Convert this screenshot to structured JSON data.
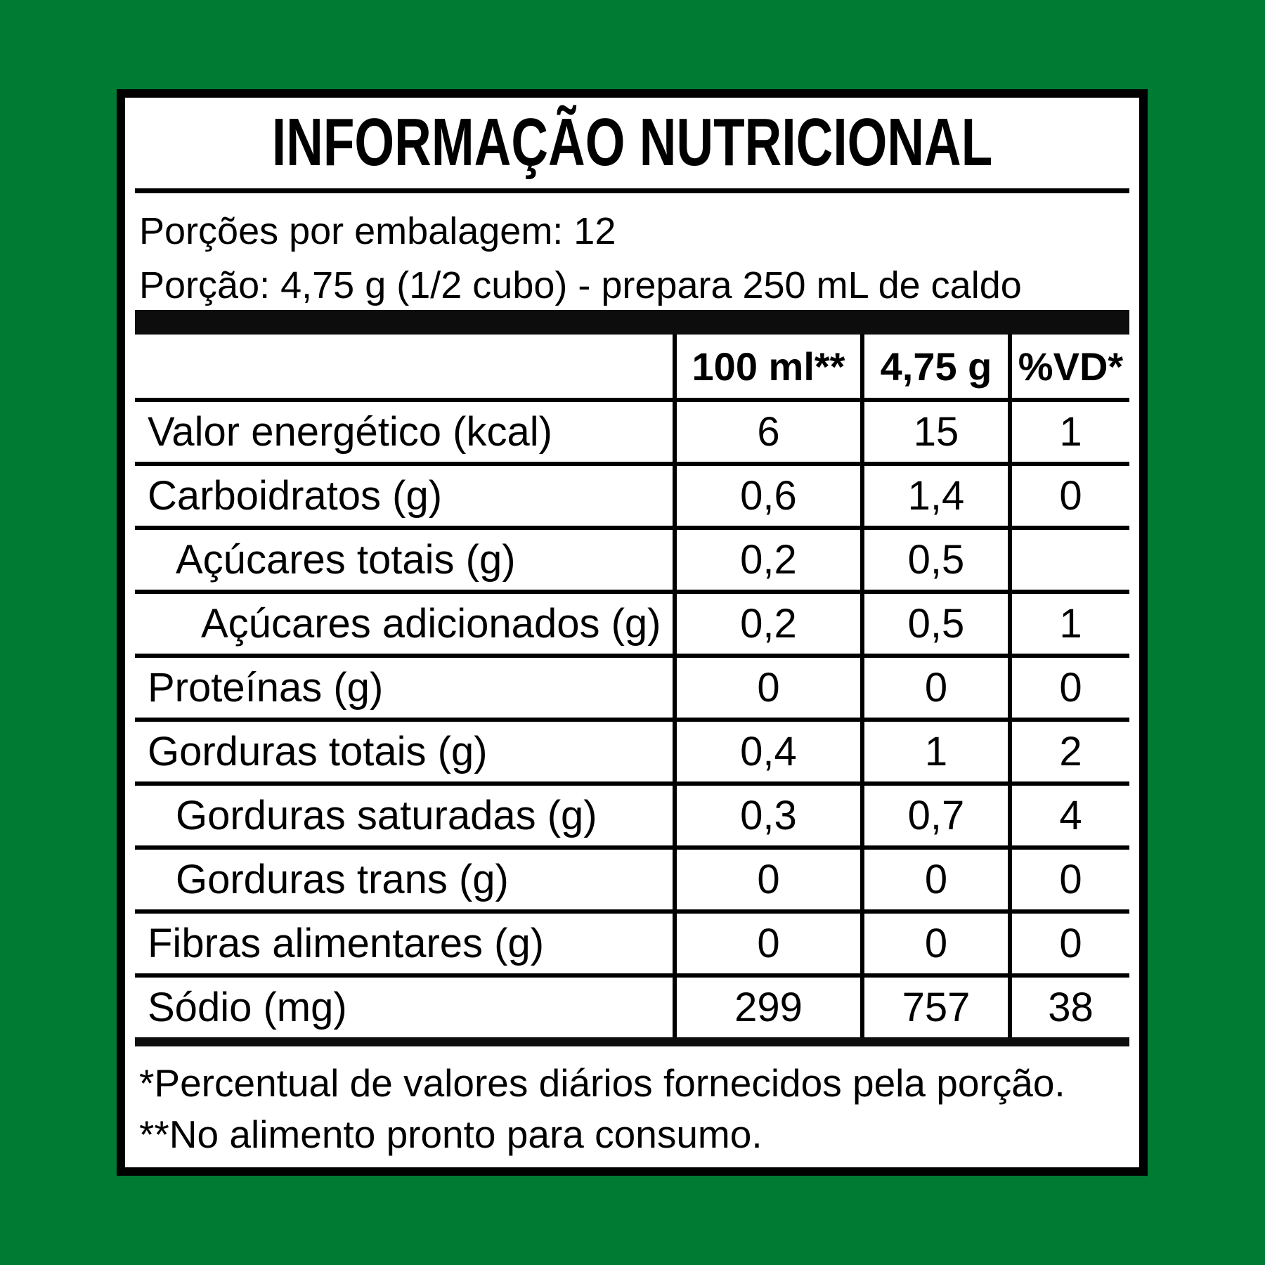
{
  "background_color": "#007B33",
  "label": {
    "title": "INFORMAÇÃO NUTRICIONAL",
    "serving_info": {
      "line1": "Porções por embalagem: 12",
      "line2": "Porção: 4,75 g (1/2 cubo) - prepara 250 mL de caldo"
    },
    "table": {
      "columns": [
        "",
        "100 ml**",
        "4,75 g",
        "%VD*"
      ],
      "rows": [
        {
          "label": "Valor energético (kcal)",
          "indent": 0,
          "per_100ml": "6",
          "per_portion": "15",
          "vd": "1"
        },
        {
          "label": "Carboidratos (g)",
          "indent": 0,
          "per_100ml": "0,6",
          "per_portion": "1,4",
          "vd": "0"
        },
        {
          "label": "Açúcares totais (g)",
          "indent": 1,
          "per_100ml": "0,2",
          "per_portion": "0,5",
          "vd": ""
        },
        {
          "label": "Açúcares adicionados (g)",
          "indent": 2,
          "per_100ml": "0,2",
          "per_portion": "0,5",
          "vd": "1"
        },
        {
          "label": "Proteínas (g)",
          "indent": 0,
          "per_100ml": "0",
          "per_portion": "0",
          "vd": "0"
        },
        {
          "label": "Gorduras totais (g)",
          "indent": 0,
          "per_100ml": "0,4",
          "per_portion": "1",
          "vd": "2"
        },
        {
          "label": "Gorduras saturadas (g)",
          "indent": 1,
          "per_100ml": "0,3",
          "per_portion": "0,7",
          "vd": "4"
        },
        {
          "label": "Gorduras trans (g)",
          "indent": 1,
          "per_100ml": "0",
          "per_portion": "0",
          "vd": "0"
        },
        {
          "label": "Fibras alimentares (g)",
          "indent": 0,
          "per_100ml": "0",
          "per_portion": "0",
          "vd": "0"
        },
        {
          "label": "Sódio (mg)",
          "indent": 0,
          "per_100ml": "299",
          "per_portion": "757",
          "vd": "38"
        }
      ]
    },
    "footnotes": {
      "line1": "*Percentual de valores diários fornecidos pela porção.",
      "line2": "**No alimento pronto para consumo."
    }
  }
}
